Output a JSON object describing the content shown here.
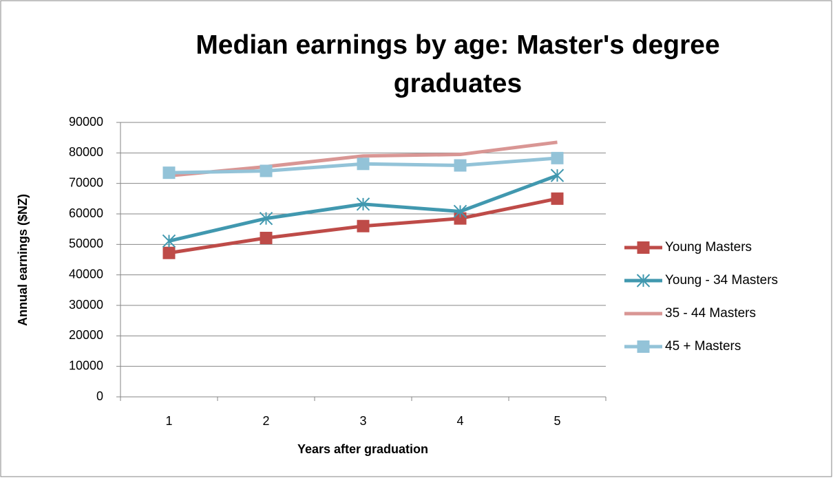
{
  "chart_data": {
    "type": "line",
    "title": "Median earnings by age: Master's degree graduates",
    "x_label": "Years after graduation",
    "y_label": "Annual earnings ($NZ)",
    "categories": [
      "1",
      "2",
      "3",
      "4",
      "5"
    ],
    "series": [
      {
        "name": "Young Masters",
        "color": "#be4b48",
        "marker": "square",
        "values": [
          47200,
          52100,
          56000,
          58500,
          65000
        ]
      },
      {
        "name": "Young - 34 Masters",
        "color": "#4198af",
        "marker": "star",
        "values": [
          51100,
          58500,
          63200,
          60800,
          72600
        ]
      },
      {
        "name": "35 - 44 Masters",
        "color": "#d99694",
        "marker": "none",
        "values": [
          72500,
          75500,
          79000,
          79500,
          83500
        ]
      },
      {
        "name": "45 + Masters",
        "color": "#93c3d8",
        "marker": "square",
        "values": [
          73500,
          74100,
          76400,
          75900,
          78300
        ]
      }
    ],
    "ylim": [
      0,
      90000
    ],
    "yticks": [
      0,
      10000,
      20000,
      30000,
      40000,
      50000,
      60000,
      70000,
      80000,
      90000
    ],
    "grid": true,
    "legend": "right"
  }
}
